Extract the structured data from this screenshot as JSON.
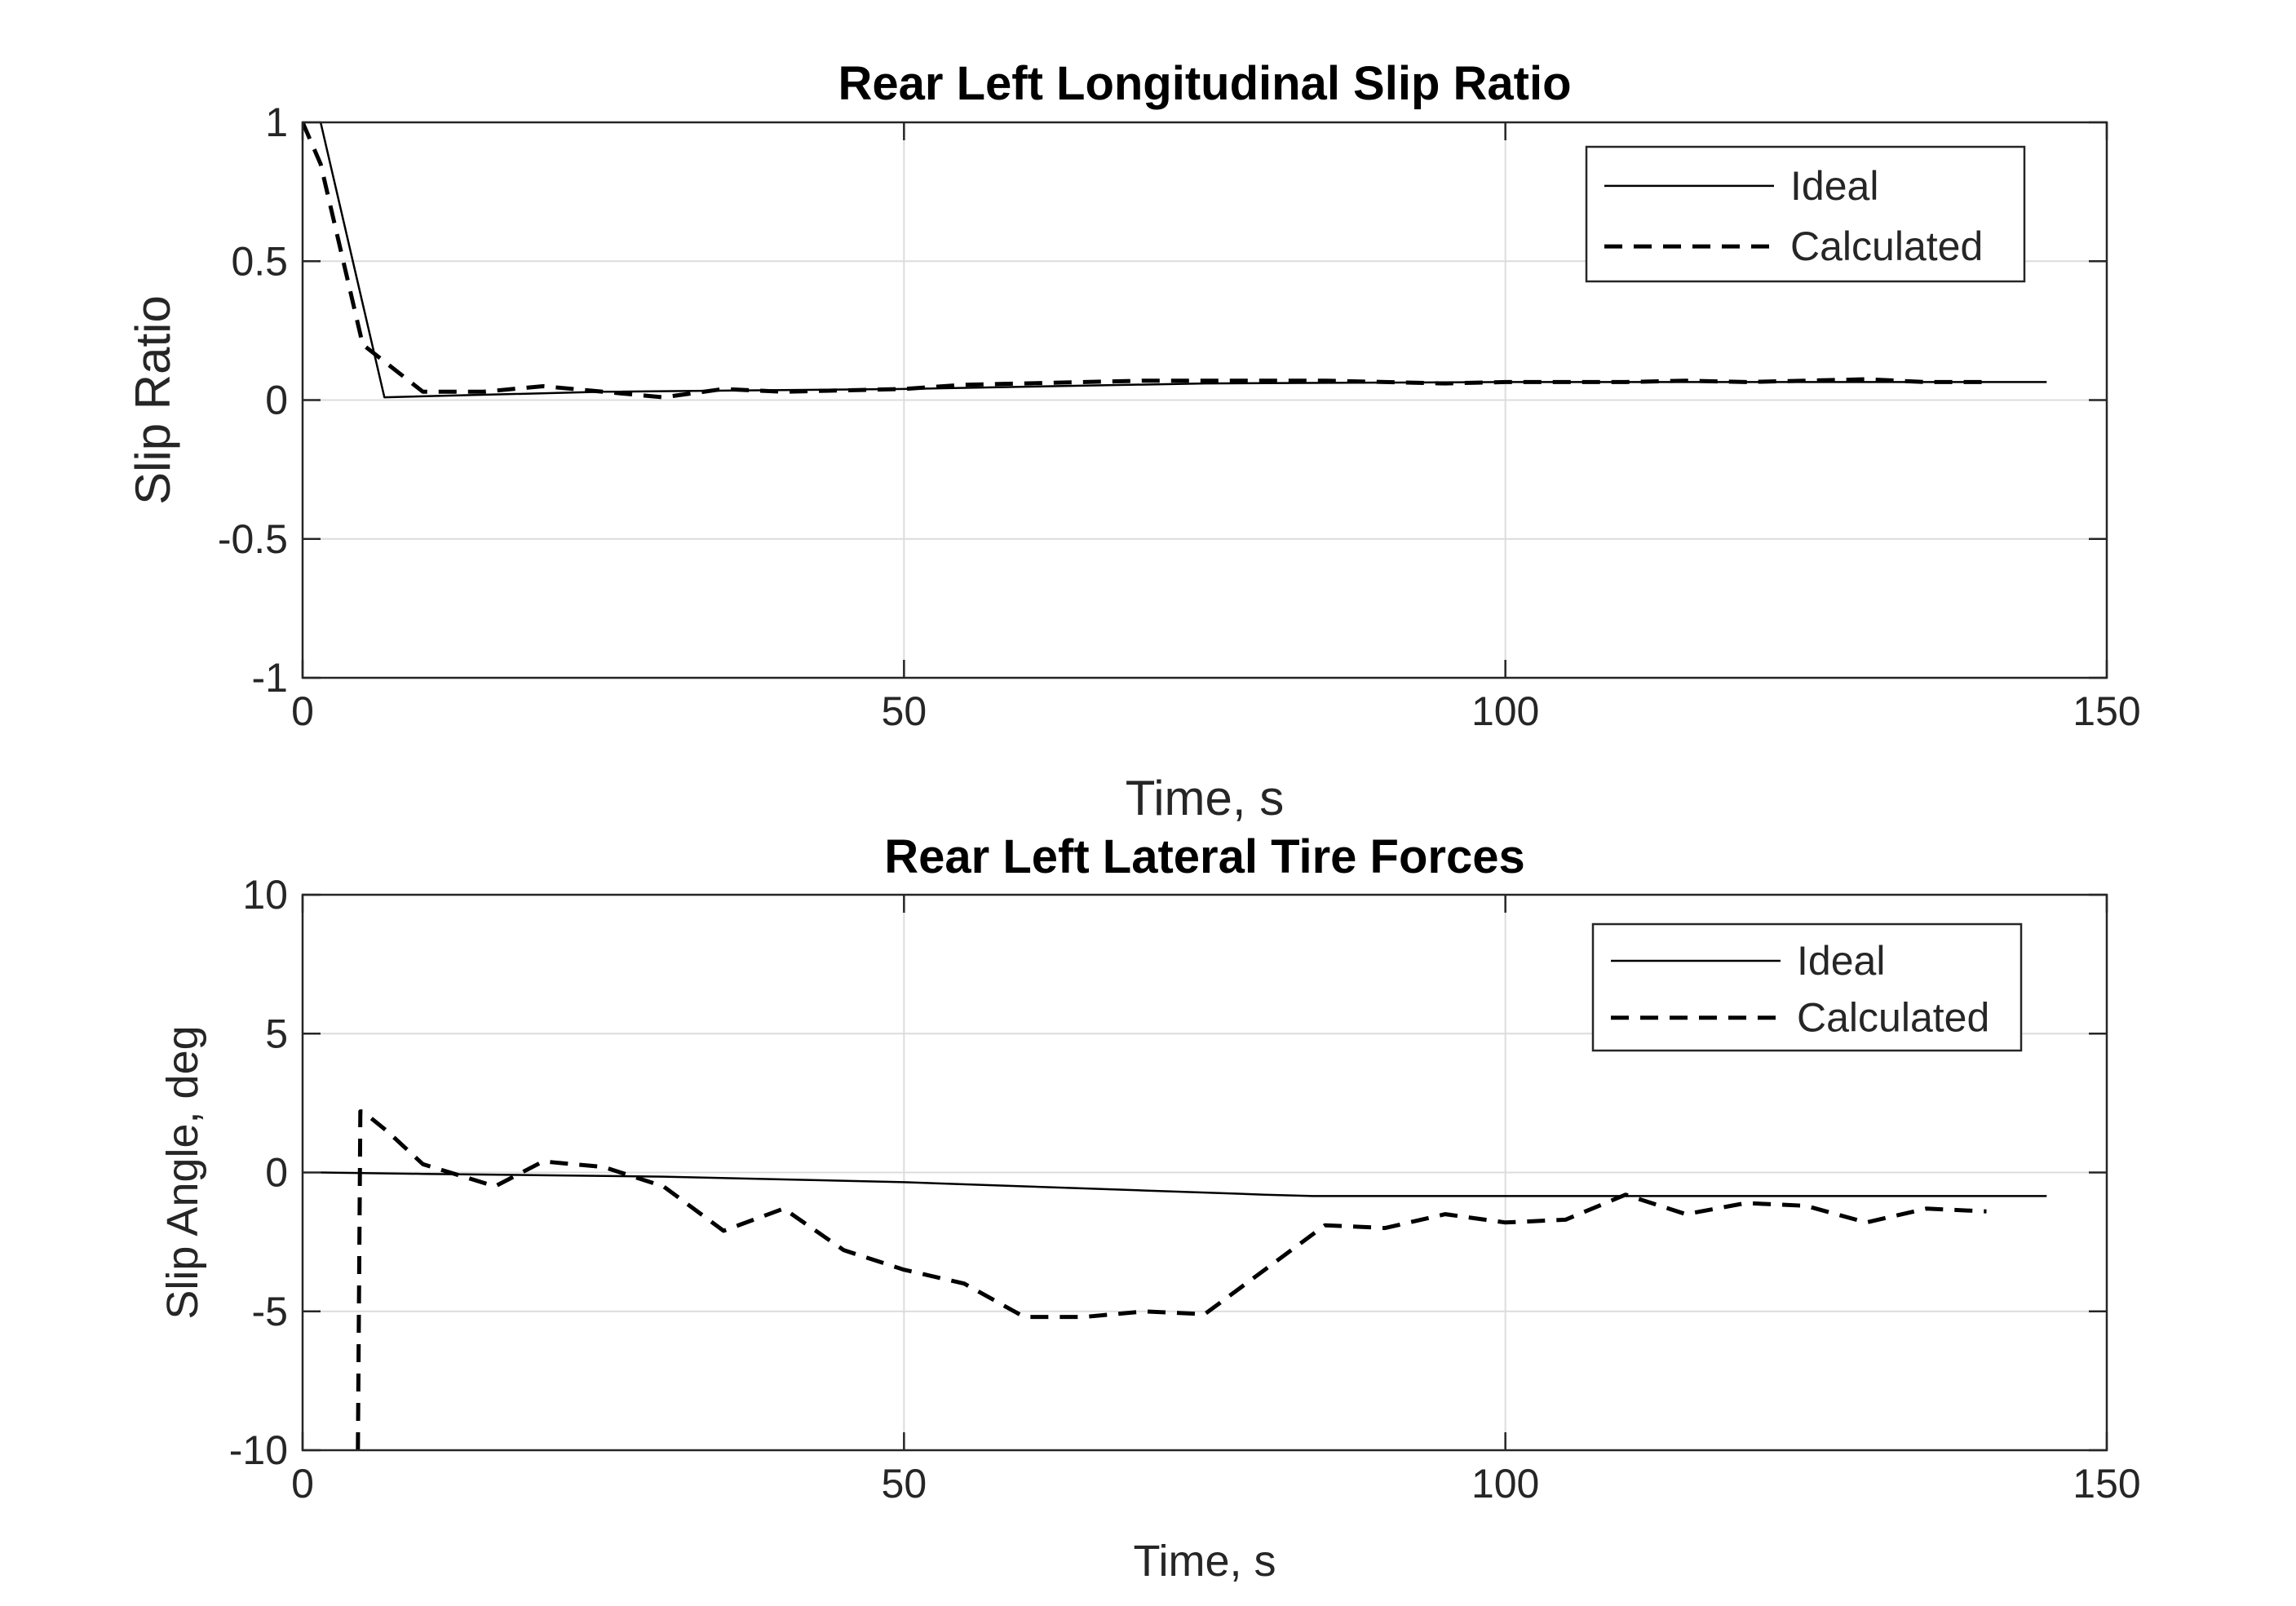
{
  "chart_data": [
    {
      "type": "line",
      "title": "Rear Left Longitudinal Slip Ratio",
      "xlabel": "Time, s",
      "ylabel": "Slip Ratio",
      "xlim": [
        0,
        150
      ],
      "ylim": [
        -1,
        1
      ],
      "xticks": [
        0,
        50,
        100,
        150
      ],
      "yticks": [
        -1,
        -0.5,
        0,
        0.5,
        1
      ],
      "xtick_labels": [
        "0",
        "50",
        "100",
        "150"
      ],
      "ytick_labels": [
        "-1",
        "-0.5",
        "0",
        "0.5",
        "1"
      ],
      "grid": true,
      "legend_position": "top-right",
      "series": [
        {
          "name": "Ideal",
          "style": "solid",
          "color": "#000000",
          "x": [
            0,
            1.5,
            6.8,
            25,
            50,
            75,
            100,
            125,
            145
          ],
          "y": [
            1.2,
            1.0,
            0.01,
            0.03,
            0.04,
            0.06,
            0.065,
            0.065,
            0.065
          ]
        },
        {
          "name": "Calculated",
          "style": "dashed",
          "color": "#000000",
          "x": [
            0,
            1.5,
            5,
            10,
            15,
            20,
            25,
            30,
            35,
            40,
            45,
            50,
            55,
            60,
            65,
            70,
            75,
            80,
            85,
            90,
            95,
            100,
            105,
            110,
            115,
            120,
            125,
            130,
            135,
            140
          ],
          "y": [
            1.0,
            0.85,
            0.2,
            0.03,
            0.03,
            0.05,
            0.03,
            0.01,
            0.04,
            0.03,
            0.035,
            0.04,
            0.055,
            0.06,
            0.065,
            0.07,
            0.07,
            0.07,
            0.07,
            0.065,
            0.06,
            0.065,
            0.065,
            0.065,
            0.07,
            0.065,
            0.07,
            0.075,
            0.065,
            0.065
          ]
        }
      ]
    },
    {
      "type": "line",
      "title": "Rear Left Lateral Tire Forces",
      "xlabel": "Time, s",
      "ylabel": "Slip Angle, deg",
      "xlim": [
        0,
        150
      ],
      "ylim": [
        -10,
        10
      ],
      "xticks": [
        0,
        50,
        100,
        150
      ],
      "yticks": [
        -10,
        -5,
        0,
        5,
        10
      ],
      "xtick_labels": [
        "0",
        "50",
        "100",
        "150"
      ],
      "ytick_labels": [
        "-10",
        "-5",
        "0",
        "5",
        "10"
      ],
      "grid": true,
      "legend_position": "top-right",
      "series": [
        {
          "name": "Ideal",
          "style": "solid",
          "color": "#000000",
          "x": [
            1.5,
            10,
            20,
            30,
            40,
            50,
            60,
            70,
            80,
            84,
            90,
            100,
            110,
            120,
            130,
            145
          ],
          "y": [
            0,
            -0.05,
            -0.1,
            -0.15,
            -0.25,
            -0.35,
            -0.5,
            -0.65,
            -0.8,
            -0.85,
            -0.85,
            -0.85,
            -0.85,
            -0.85,
            -0.85,
            -0.85
          ]
        },
        {
          "name": "Calculated",
          "style": "dashed",
          "color": "#000000",
          "x": [
            4.6,
            4.8,
            5,
            7,
            10,
            13,
            16,
            20,
            25,
            30,
            35,
            40,
            45,
            50,
            55,
            60,
            65,
            70,
            75,
            80,
            85,
            90,
            95,
            100,
            105,
            110,
            115,
            120,
            125,
            130,
            135,
            140
          ],
          "y": [
            -10,
            2.2,
            2.2,
            1.5,
            0.3,
            -0.1,
            -0.5,
            0.4,
            0.2,
            -0.5,
            -2.1,
            -1.3,
            -2.8,
            -3.5,
            -4.0,
            -5.2,
            -5.2,
            -5.0,
            -5.1,
            -3.5,
            -1.9,
            -2.0,
            -1.5,
            -1.8,
            -1.7,
            -0.8,
            -1.5,
            -1.1,
            -1.2,
            -1.8,
            -1.3,
            -1.4
          ]
        }
      ]
    }
  ]
}
